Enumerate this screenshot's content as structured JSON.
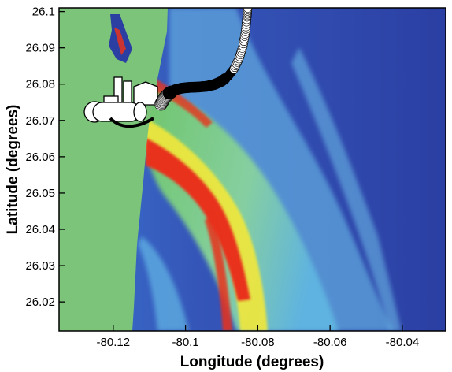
{
  "chart_data": {
    "type": "heatmap",
    "title": "",
    "xlabel": "Longitude (degrees)",
    "ylabel": "Latitude (degrees)",
    "xlim": [
      -80.135,
      -80.028
    ],
    "ylim": [
      26.012,
      26.101
    ],
    "x_ticks": [
      {
        "value": -80.12,
        "label": "-80.12"
      },
      {
        "value": -80.1,
        "label": "-80.1"
      },
      {
        "value": -80.08,
        "label": "-80.08"
      },
      {
        "value": -80.06,
        "label": "-80.06"
      },
      {
        "value": -80.04,
        "label": "-80.04"
      }
    ],
    "y_ticks": [
      {
        "value": 26.1,
        "label": "26.1"
      },
      {
        "value": 26.09,
        "label": "26.09"
      },
      {
        "value": 26.08,
        "label": "26.08"
      },
      {
        "value": 26.07,
        "label": "26.07"
      },
      {
        "value": 26.06,
        "label": "26.06"
      },
      {
        "value": 26.05,
        "label": "26.05"
      },
      {
        "value": 26.04,
        "label": "26.04"
      },
      {
        "value": 26.03,
        "label": "26.03"
      },
      {
        "value": 26.02,
        "label": "26.02"
      }
    ],
    "grid": false,
    "legend": "none",
    "colors": {
      "land": "#7cc47a",
      "water_deep": "#2b3fa3",
      "water_mid": "#3f6fd0",
      "water_light": "#63b8e6",
      "green": "#6fc56b",
      "yellow": "#f2e83a",
      "red": "#e8321c"
    },
    "outfall_track": {
      "points": [
        {
          "lon": -80.1068,
          "lat": 26.0745
        },
        {
          "lon": -80.1058,
          "lat": 26.0762
        },
        {
          "lon": -80.1045,
          "lat": 26.0775
        },
        {
          "lon": -80.103,
          "lat": 26.0784
        },
        {
          "lon": -80.101,
          "lat": 26.0789
        },
        {
          "lon": -80.099,
          "lat": 26.0791
        },
        {
          "lon": -80.0965,
          "lat": 26.0792
        },
        {
          "lon": -80.0942,
          "lat": 26.0794
        },
        {
          "lon": -80.092,
          "lat": 26.0799
        },
        {
          "lon": -80.09,
          "lat": 26.0808
        },
        {
          "lon": -80.0882,
          "lat": 26.0822
        },
        {
          "lon": -80.0866,
          "lat": 26.0842
        },
        {
          "lon": -80.0852,
          "lat": 26.087
        },
        {
          "lon": -80.0841,
          "lat": 26.0905
        },
        {
          "lon": -80.0834,
          "lat": 26.0945
        },
        {
          "lon": -80.083,
          "lat": 26.0985
        },
        {
          "lon": -80.0828,
          "lat": 26.101
        }
      ]
    }
  }
}
